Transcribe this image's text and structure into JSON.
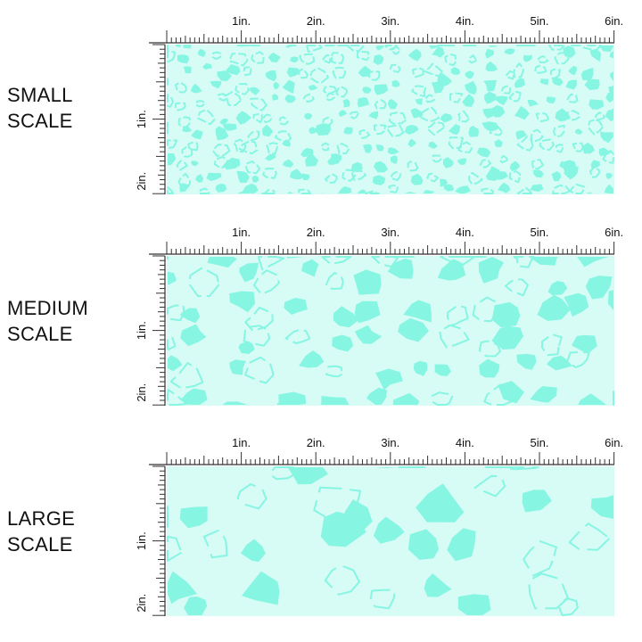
{
  "colors": {
    "background": "#d7fcf6",
    "spots": "#86f5e2",
    "ruler": "#333333"
  },
  "ruler": {
    "top_labels": [
      "1in.",
      "2in.",
      "3in.",
      "4in.",
      "5in.",
      "6in."
    ],
    "side_labels": [
      "1in.",
      "2in."
    ]
  },
  "panels": [
    {
      "label": "SMALL\nSCALE",
      "spot_scale": 1
    },
    {
      "label": "MEDIUM\nSCALE",
      "spot_scale": 2
    },
    {
      "label": "LARGE\nSCALE",
      "spot_scale": 3
    }
  ]
}
